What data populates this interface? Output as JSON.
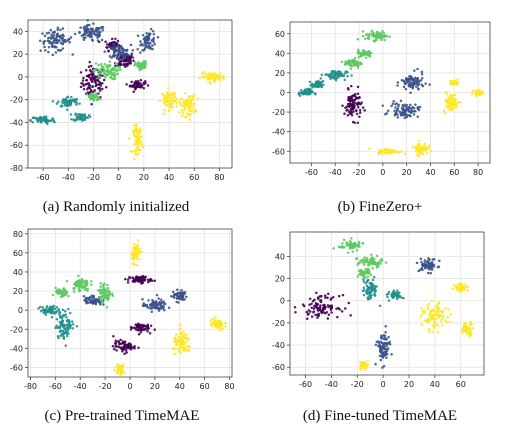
{
  "chart_data": [
    {
      "type": "scatter",
      "caption": "(a) Randomly initialized",
      "xlim": [
        -72,
        90
      ],
      "ylim": [
        -80,
        50
      ],
      "xticks": [
        -60,
        -40,
        -20,
        0,
        20,
        40,
        60,
        80
      ],
      "yticks": [
        -80,
        -60,
        -40,
        -20,
        0,
        20,
        40
      ],
      "grid": true,
      "series": [
        {
          "color": "#440154",
          "clusters": [
            [
              -20,
              -5,
              8,
              12
            ],
            [
              5,
              15,
              6,
              6
            ],
            [
              -5,
              28,
              5,
              4
            ],
            [
              15,
              -7,
              5,
              3
            ]
          ]
        },
        {
          "color": "#3b528b",
          "clusters": [
            [
              -50,
              32,
              10,
              8
            ],
            [
              -22,
              38,
              10,
              6
            ],
            [
              24,
              32,
              5,
              7
            ],
            [
              0,
              22,
              8,
              5
            ]
          ]
        },
        {
          "color": "#21908d",
          "clusters": [
            [
              -60,
              -38,
              8,
              3
            ],
            [
              -40,
              -22,
              7,
              4
            ],
            [
              -30,
              -35,
              5,
              3
            ]
          ]
        },
        {
          "color": "#5dc963",
          "clusters": [
            [
              -10,
              5,
              8,
              6
            ],
            [
              18,
              10,
              4,
              3
            ],
            [
              -20,
              -18,
              4,
              3
            ]
          ]
        },
        {
          "color": "#fde725",
          "clusters": [
            [
              55,
              -25,
              5,
              8
            ],
            [
              75,
              0,
              8,
              3
            ],
            [
              15,
              -55,
              3,
              10
            ],
            [
              40,
              -20,
              5,
              7
            ]
          ]
        }
      ]
    },
    {
      "type": "scatter",
      "caption": "(b) FineZero+",
      "xlim": [
        -78,
        90
      ],
      "ylim": [
        -72,
        72
      ],
      "xticks": [
        -60,
        -40,
        -20,
        0,
        20,
        40,
        60,
        80
      ],
      "yticks": [
        -60,
        -40,
        -20,
        0,
        20,
        40,
        60
      ],
      "grid": true,
      "series": [
        {
          "color": "#440154",
          "clusters": [
            [
              -25,
              -13,
              6,
              12
            ]
          ]
        },
        {
          "color": "#3b528b",
          "clusters": [
            [
              25,
              10,
              8,
              8
            ],
            [
              18,
              -18,
              10,
              6
            ]
          ]
        },
        {
          "color": "#21908d",
          "clusters": [
            [
              -40,
              18,
              8,
              4
            ],
            [
              -65,
              0,
              5,
              3
            ],
            [
              -55,
              8,
              4,
              3
            ]
          ]
        },
        {
          "color": "#5dc963",
          "clusters": [
            [
              -5,
              58,
              8,
              4
            ],
            [
              -25,
              30,
              6,
              4
            ],
            [
              -15,
              40,
              5,
              3
            ]
          ]
        },
        {
          "color": "#fde725",
          "clusters": [
            [
              5,
              -60,
              8,
              2
            ],
            [
              32,
              -57,
              5,
              5
            ],
            [
              57,
              -10,
              5,
              8
            ],
            [
              80,
              0,
              3,
              2
            ],
            [
              60,
              10,
              3,
              2
            ]
          ]
        }
      ]
    },
    {
      "type": "scatter",
      "caption": "(c) Pre-trained TimeMAE",
      "xlim": [
        -82,
        82
      ],
      "ylim": [
        -70,
        85
      ],
      "xticks": [
        -80,
        -60,
        -40,
        -20,
        0,
        20,
        40,
        60,
        80
      ],
      "yticks": [
        -60,
        -40,
        -20,
        0,
        20,
        40,
        60,
        80
      ],
      "grid": true,
      "series": [
        {
          "color": "#440154",
          "clusters": [
            [
              8,
              32,
              8,
              3
            ],
            [
              -5,
              -38,
              7,
              5
            ],
            [
              8,
              -18,
              6,
              4
            ]
          ]
        },
        {
          "color": "#3b528b",
          "clusters": [
            [
              40,
              15,
              5,
              5
            ],
            [
              20,
              5,
              8,
              5
            ],
            [
              -30,
              10,
              6,
              4
            ]
          ]
        },
        {
          "color": "#21908d",
          "clusters": [
            [
              -52,
              -15,
              6,
              12
            ],
            [
              -65,
              0,
              6,
              4
            ]
          ]
        },
        {
          "color": "#5dc963",
          "clusters": [
            [
              -40,
              27,
              6,
              6
            ],
            [
              -20,
              18,
              4,
              8
            ],
            [
              -55,
              18,
              4,
              4
            ]
          ]
        },
        {
          "color": "#fde725",
          "clusters": [
            [
              5,
              60,
              3,
              8
            ],
            [
              42,
              -35,
              6,
              10
            ],
            [
              70,
              -15,
              5,
              5
            ],
            [
              -8,
              -62,
              3,
              4
            ]
          ]
        }
      ]
    },
    {
      "type": "scatter",
      "caption": "(d) Fine-tuned TimeMAE",
      "xlim": [
        -72,
        78
      ],
      "ylim": [
        -67,
        62
      ],
      "xticks": [
        -60,
        -40,
        -20,
        0,
        20,
        40,
        60
      ],
      "yticks": [
        -60,
        -40,
        -20,
        0,
        20,
        40
      ],
      "grid": true,
      "series": [
        {
          "color": "#440154",
          "clusters": [
            [
              -48,
              -5,
              12,
              8
            ]
          ]
        },
        {
          "color": "#3b528b",
          "clusters": [
            [
              35,
              32,
              6,
              5
            ],
            [
              0,
              -43,
              4,
              12
            ]
          ]
        },
        {
          "color": "#21908d",
          "clusters": [
            [
              -10,
              10,
              5,
              8
            ],
            [
              10,
              5,
              4,
              3
            ]
          ]
        },
        {
          "color": "#5dc963",
          "clusters": [
            [
              -25,
              50,
              8,
              4
            ],
            [
              -10,
              35,
              8,
              4
            ],
            [
              -15,
              25,
              4,
              3
            ]
          ]
        },
        {
          "color": "#fde725",
          "clusters": [
            [
              40,
              -15,
              8,
              10
            ],
            [
              65,
              -25,
              4,
              5
            ],
            [
              60,
              12,
              4,
              3
            ],
            [
              -15,
              -58,
              3,
              3
            ]
          ]
        }
      ]
    }
  ]
}
